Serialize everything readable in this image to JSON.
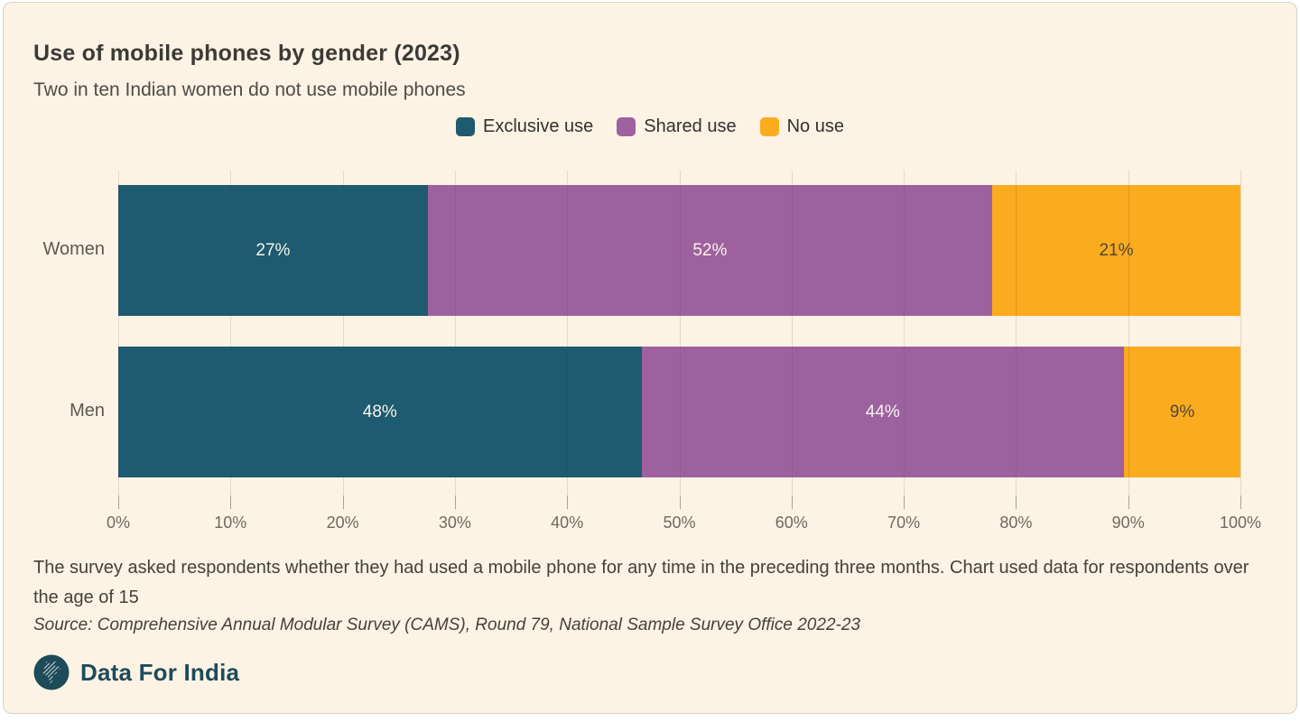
{
  "chart_data": {
    "type": "bar",
    "stacked": true,
    "orientation": "horizontal",
    "title": "Use of mobile phones by gender (2023)",
    "subtitle": "Two in ten Indian women do not use mobile phones",
    "categories": [
      "Women",
      "Men"
    ],
    "series": [
      {
        "name": "Exclusive use",
        "color": "#1e5a70",
        "label_color": "#f7f3ea",
        "values": [
          27,
          48
        ]
      },
      {
        "name": "Shared use",
        "color": "#9e61a0",
        "label_color": "#f7f3ea",
        "values": [
          52,
          44
        ]
      },
      {
        "name": "No use",
        "color": "#fbab1e",
        "label_color": "#4f4839",
        "values": [
          21,
          9
        ]
      }
    ],
    "value_suffix": "%",
    "xlim": [
      0,
      100
    ],
    "x_ticks": [
      "0%",
      "10%",
      "20%",
      "30%",
      "40%",
      "50%",
      "60%",
      "70%",
      "80%",
      "90%",
      "100%"
    ],
    "grid": true,
    "legend_position": "top-center"
  },
  "footnote": "The survey asked respondents whether they had used a mobile phone for any time in the preceding three months. Chart used data for respondents over the age of 15",
  "source": "Source: Comprehensive Annual Modular Survey (CAMS), Round 79, National Sample Survey Office 2022-23",
  "brand": {
    "name": "Data For India"
  },
  "colors": {
    "card_background": "#fcf3e4",
    "card_border": "#d6d2c9",
    "title_text": "#3c3a36",
    "logo_teal": "#1d4b59"
  }
}
